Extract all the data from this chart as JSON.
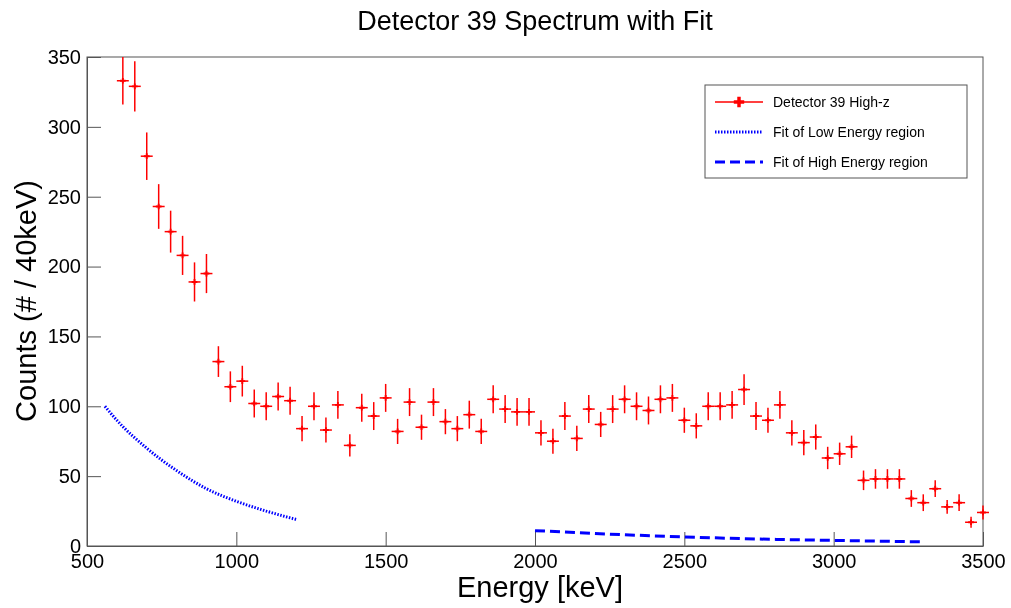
{
  "chart_data": {
    "type": "scatter",
    "title": "Detector 39 Spectrum with Fit",
    "xlabel": "Energy [keV]",
    "ylabel": "Counts (# / 40keV)",
    "xlim": [
      500,
      3500
    ],
    "xticks": [
      500,
      1000,
      1500,
      2000,
      2500,
      3000,
      3500
    ],
    "ylim": [
      0,
      350
    ],
    "yticks": [
      0,
      50,
      100,
      150,
      200,
      250,
      300,
      350
    ],
    "grid": false,
    "legend": "top right",
    "series": [
      {
        "name": "Detector 39 High-z",
        "color": "#ff0000",
        "marker": "cross",
        "x": [
          620,
          660,
          700,
          740,
          780,
          820,
          860,
          900,
          940,
          980,
          1020,
          1060,
          1100,
          1140,
          1180,
          1220,
          1260,
          1300,
          1340,
          1380,
          1420,
          1460,
          1500,
          1540,
          1580,
          1620,
          1660,
          1700,
          1740,
          1780,
          1820,
          1860,
          1900,
          1940,
          1980,
          2020,
          2060,
          2100,
          2140,
          2180,
          2220,
          2260,
          2300,
          2340,
          2380,
          2420,
          2460,
          2500,
          2540,
          2580,
          2620,
          2660,
          2700,
          2740,
          2780,
          2820,
          2860,
          2900,
          2940,
          2980,
          3020,
          3060,
          3100,
          3140,
          3180,
          3220,
          3260,
          3300,
          3340,
          3380,
          3420,
          3460,
          3500
        ],
        "values": [
          333,
          329,
          279,
          243,
          225,
          208,
          189,
          195,
          132,
          114,
          118,
          102,
          100,
          107,
          104,
          84,
          100,
          83,
          101,
          72,
          99,
          93,
          106,
          82,
          103,
          85,
          103,
          89,
          84,
          94,
          82,
          105,
          98,
          96,
          96,
          81,
          75,
          93,
          77,
          98,
          87,
          98,
          105,
          100,
          97,
          105,
          106,
          90,
          86,
          100,
          100,
          101,
          112,
          93,
          90,
          101,
          81,
          74,
          78,
          63,
          66,
          71,
          47,
          48,
          48,
          48,
          34,
          31,
          41,
          28,
          31,
          17,
          24
        ],
        "errors": [
          17,
          18,
          17,
          16,
          15,
          14,
          14,
          14,
          11,
          11,
          11,
          10,
          10,
          10,
          10,
          9,
          10,
          9,
          10,
          8,
          10,
          10,
          10,
          9,
          10,
          9,
          10,
          9,
          9,
          10,
          9,
          10,
          10,
          10,
          10,
          9,
          9,
          10,
          9,
          10,
          9,
          10,
          10,
          10,
          10,
          10,
          10,
          9,
          9,
          10,
          10,
          10,
          11,
          10,
          9,
          10,
          9,
          9,
          9,
          8,
          8,
          8,
          7,
          7,
          7,
          7,
          6,
          6,
          6,
          5,
          6,
          4,
          5
        ],
        "xerrors": [
          20,
          20,
          20,
          20,
          20,
          20,
          20,
          20,
          20,
          20,
          20,
          20,
          20,
          20,
          20,
          20,
          20,
          20,
          20,
          20,
          20,
          20,
          20,
          20,
          20,
          20,
          20,
          20,
          20,
          20,
          20,
          20,
          20,
          20,
          20,
          20,
          20,
          20,
          20,
          20,
          20,
          20,
          20,
          20,
          20,
          20,
          20,
          20,
          20,
          20,
          20,
          20,
          20,
          20,
          20,
          20,
          20,
          20,
          20,
          20,
          20,
          20,
          20,
          20,
          20,
          20,
          20,
          20,
          20,
          20,
          20,
          20,
          20
        ]
      },
      {
        "name": "Fit of Low Energy region",
        "color": "#0000ff",
        "type": "line",
        "line_style": "dotted",
        "x": [
          560,
          600,
          700,
          800,
          900,
          1000,
          1100,
          1200
        ],
        "values": [
          100,
          90,
          70,
          54,
          41,
          32,
          25,
          19
        ]
      },
      {
        "name": "Fit of High Energy region",
        "color": "#0000ff",
        "type": "line",
        "line_style": "dashed",
        "x": [
          2000,
          2250,
          2500,
          2750,
          3000,
          3290
        ],
        "values": [
          11,
          8.5,
          6.5,
          5,
          4,
          3
        ]
      }
    ]
  }
}
